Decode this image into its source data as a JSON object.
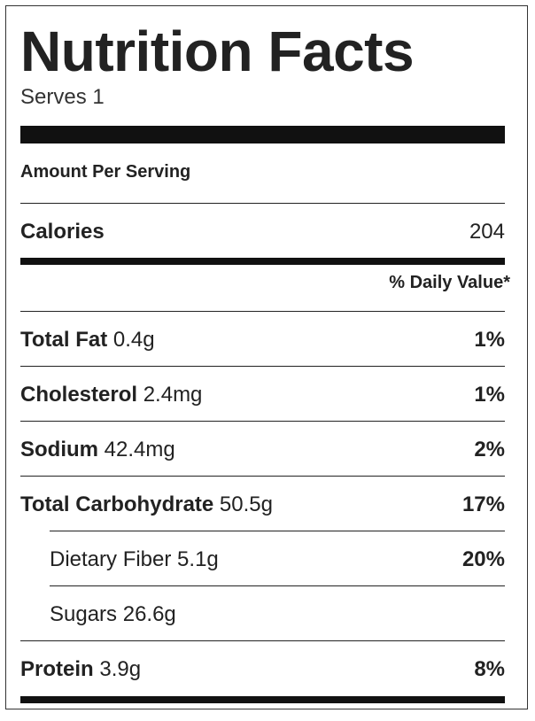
{
  "title": "Nutrition Facts",
  "serves": "Serves 1",
  "amount_per_serving": "Amount Per Serving",
  "calories": {
    "label": "Calories",
    "value": "204"
  },
  "daily_value_header": "% Daily Value*",
  "nutrients": [
    {
      "name": "Total Fat",
      "amount": "0.4g",
      "dv": "1%"
    },
    {
      "name": "Cholesterol",
      "amount": "2.4mg",
      "dv": "1%"
    },
    {
      "name": "Sodium",
      "amount": "42.4mg",
      "dv": "2%"
    },
    {
      "name": "Total Carbohydrate",
      "amount": "50.5g",
      "dv": "17%"
    },
    {
      "name": "Dietary Fiber",
      "amount": "5.1g",
      "dv": "20%"
    },
    {
      "name": "Sugars",
      "amount": "26.6g",
      "dv": ""
    },
    {
      "name": "Protein",
      "amount": "3.9g",
      "dv": "8%"
    }
  ]
}
